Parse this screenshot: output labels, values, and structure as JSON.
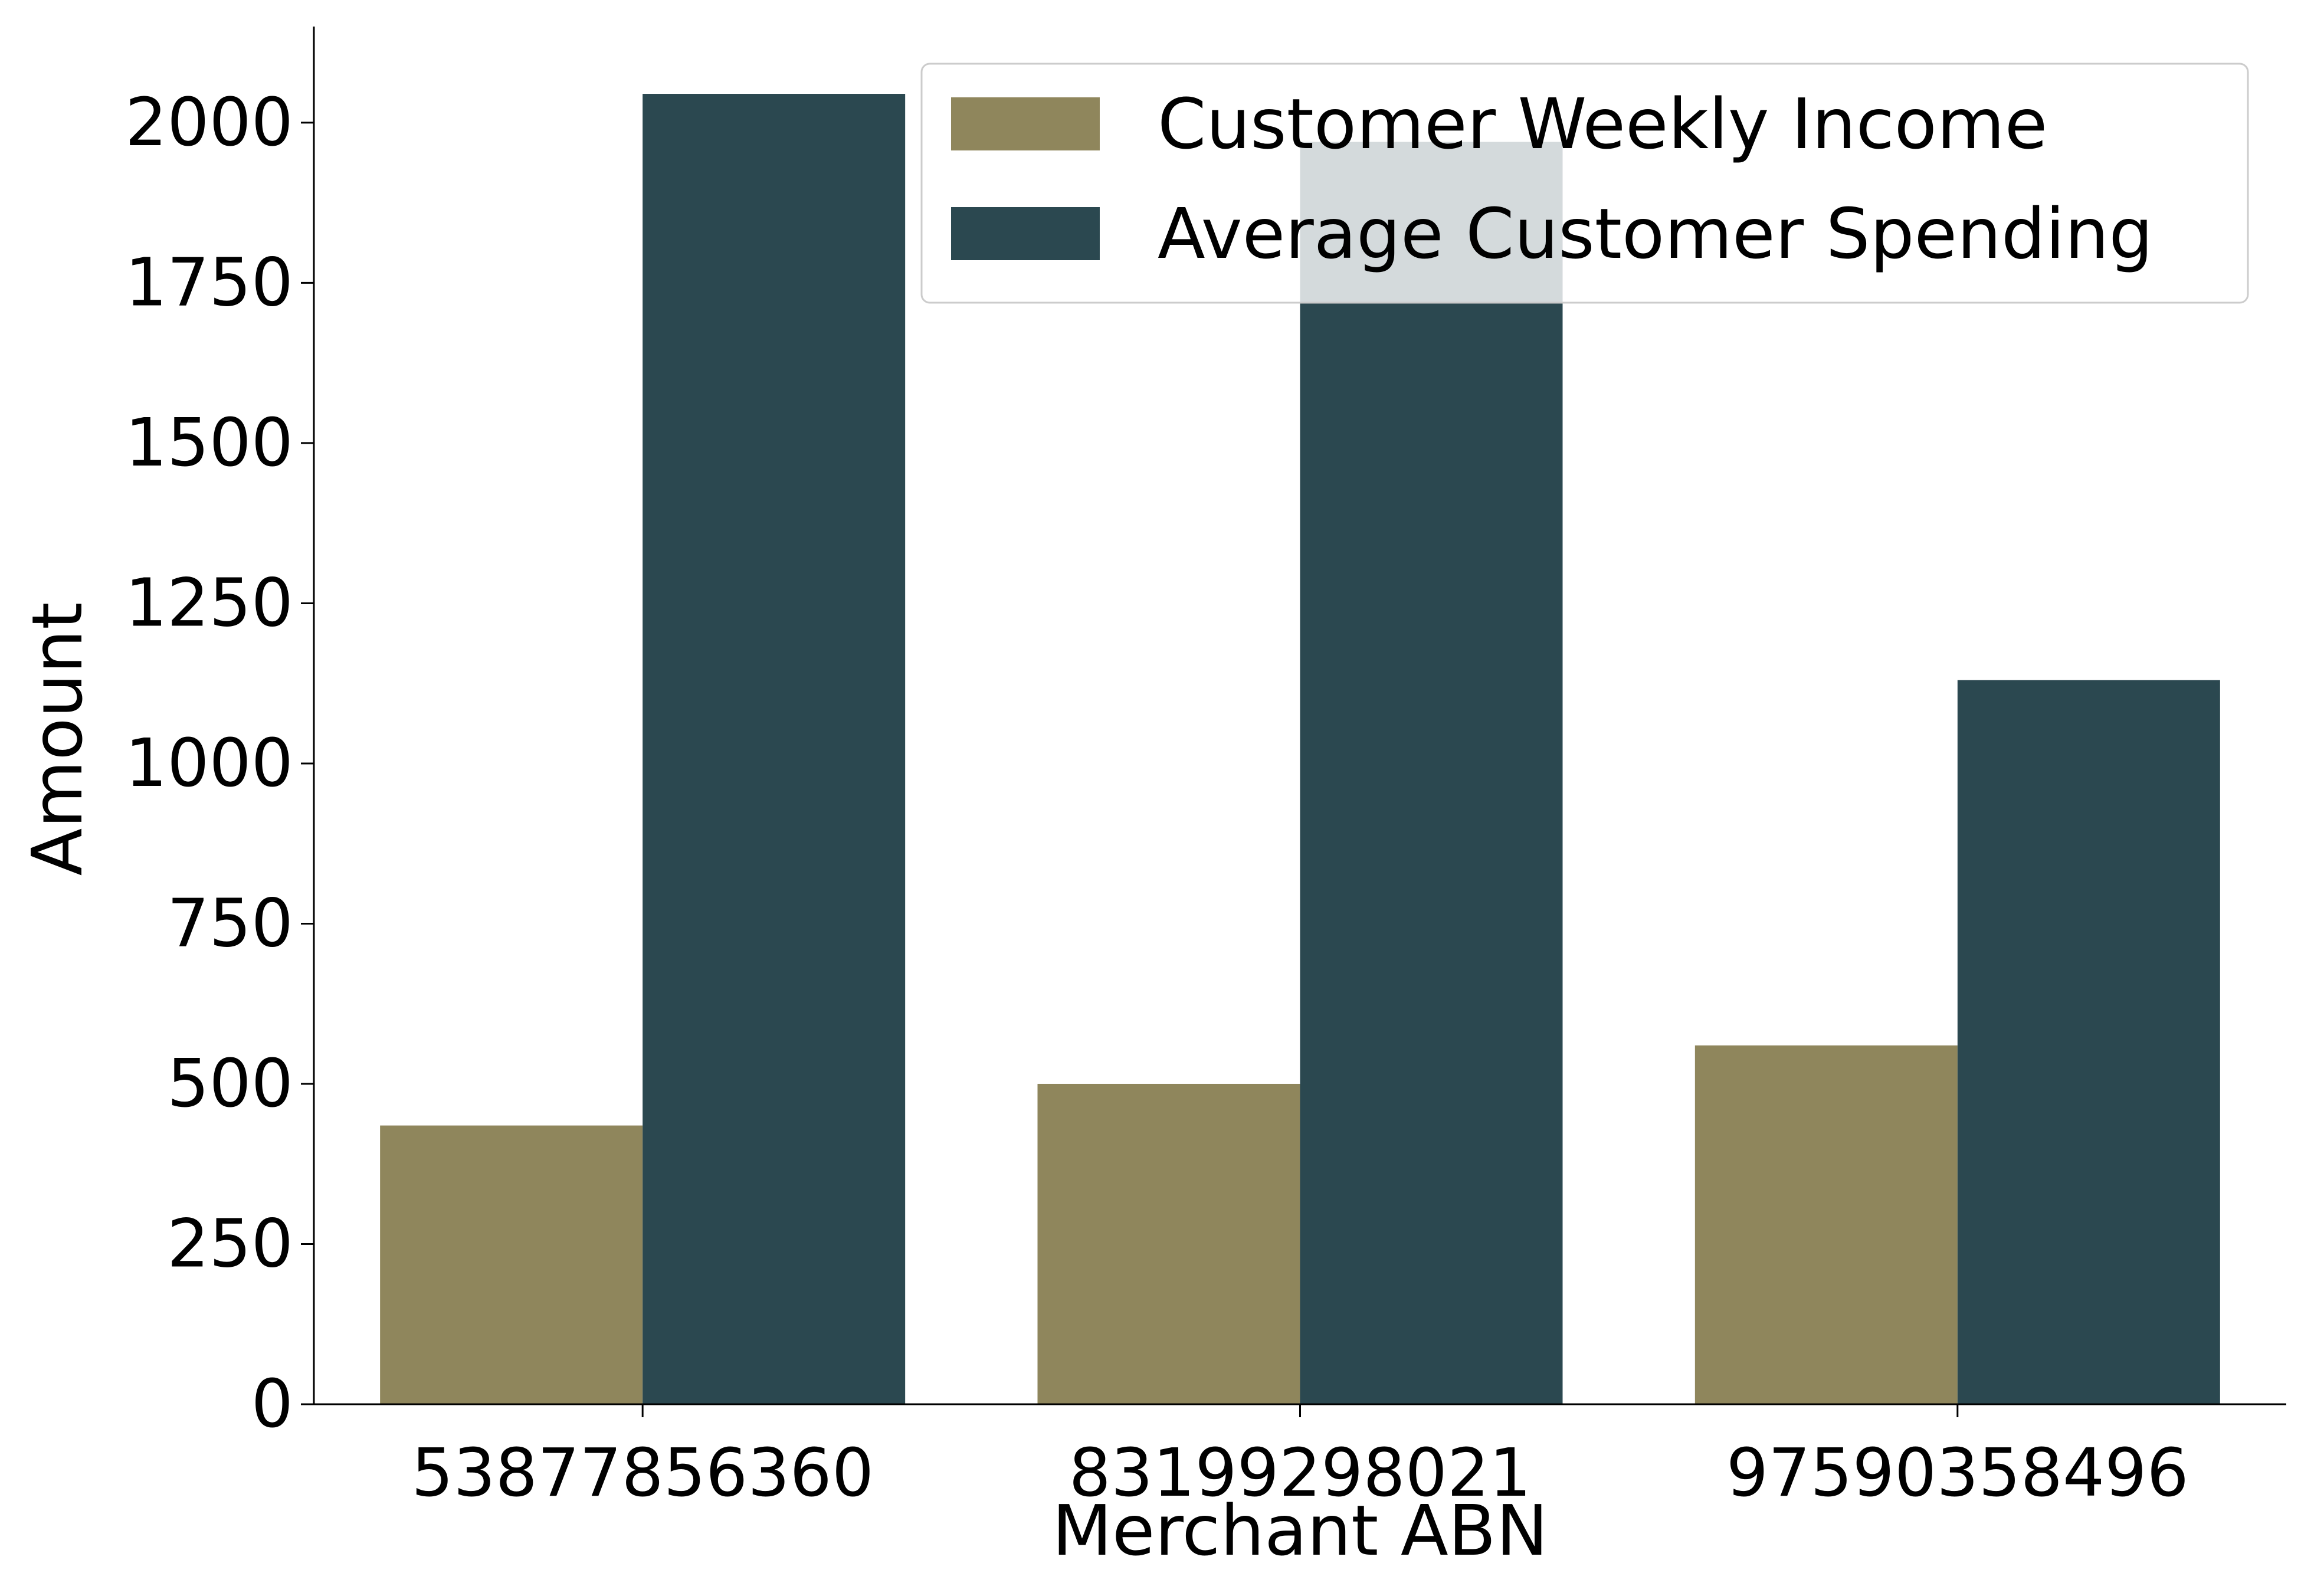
{
  "chart_data": {
    "type": "bar",
    "title": "",
    "xlabel": "Merchant ABN",
    "ylabel": "Amount",
    "categories": [
      "53877856360",
      "83199298021",
      "97590358496"
    ],
    "series": [
      {
        "name": "Customer Weekly Income",
        "color": "#8f865c",
        "values": [
          435,
          500,
          560
        ]
      },
      {
        "name": "Average Customer Spending",
        "color": "#2b4850",
        "values": [
          2045,
          1970,
          1130
        ]
      }
    ],
    "ylim": [
      0,
      2150
    ],
    "yticks": [
      0,
      250,
      500,
      750,
      1000,
      1250,
      1500,
      1750,
      2000
    ],
    "grid": false,
    "legend_position": "top-right"
  }
}
